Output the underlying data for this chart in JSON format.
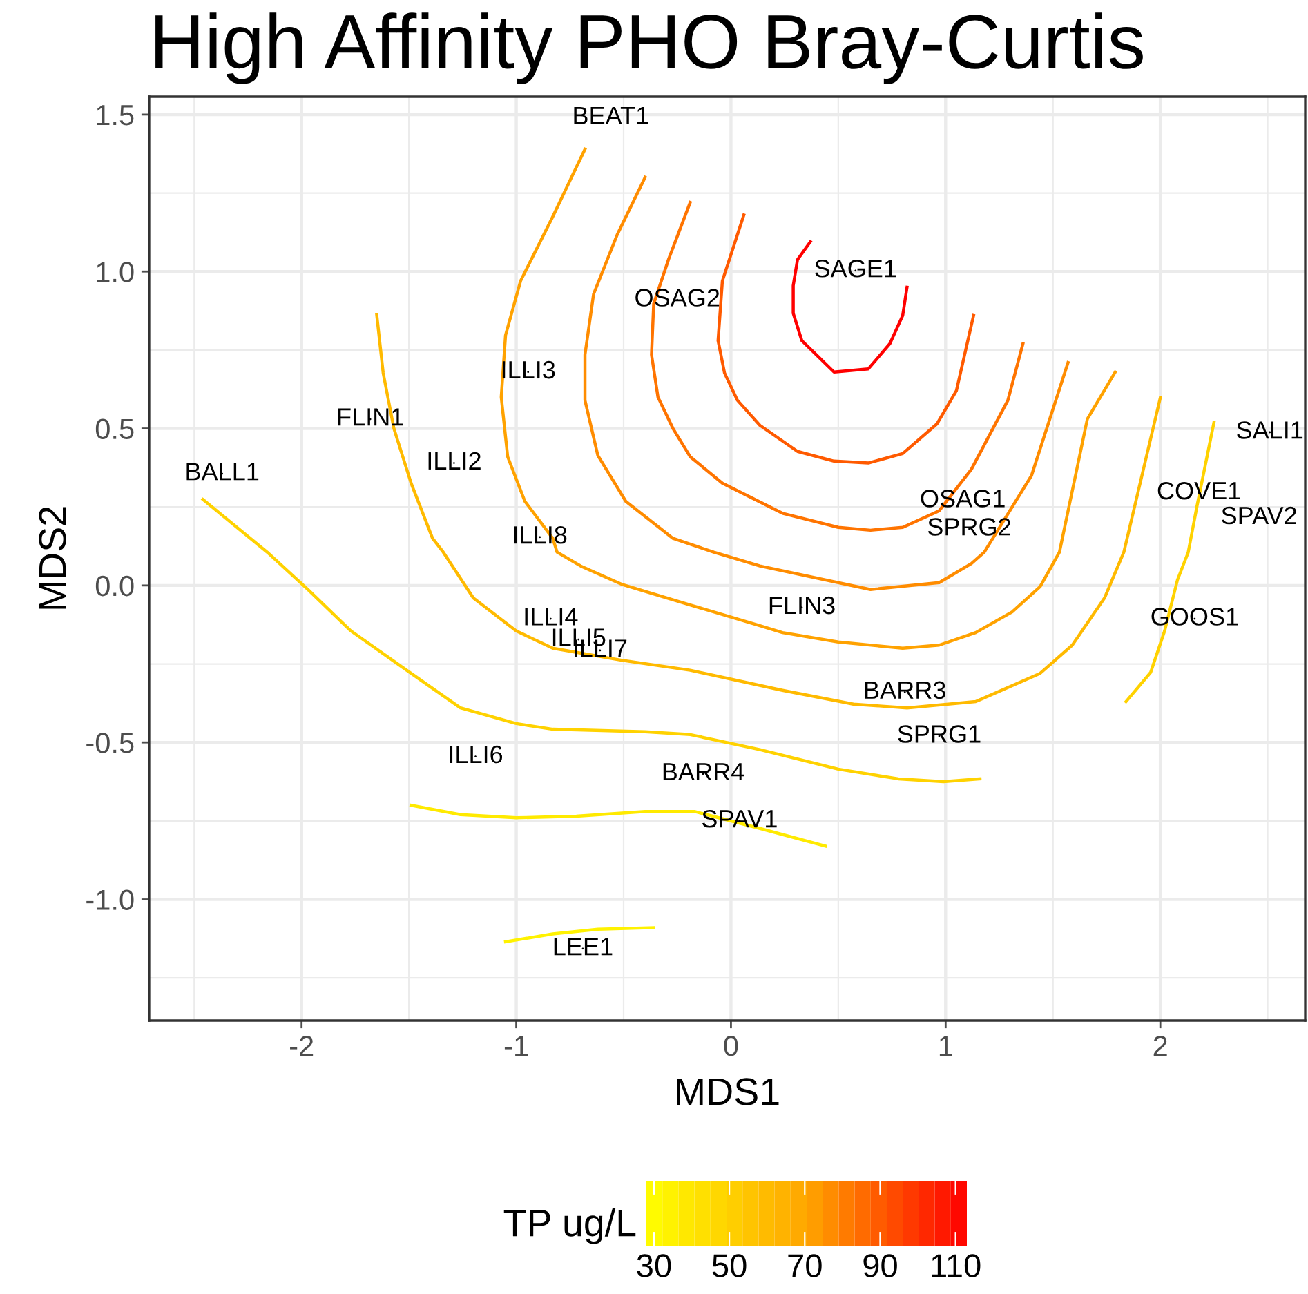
{
  "chart_data": {
    "type": "line",
    "title": "High Affinity PHO Bray-Curtis",
    "xlabel": "MDS1",
    "ylabel": "MDS2",
    "clabel": "TP ug/L",
    "clim": [
      28,
      113
    ],
    "cticks": [
      30,
      50,
      70,
      90,
      110
    ],
    "xlim": [
      -2.71,
      2.675
    ],
    "ylim": [
      -1.386,
      1.557
    ],
    "xticks": [
      -2,
      -1,
      0,
      1,
      2
    ],
    "yticks": [
      {
        "value": -1.0,
        "label": "-1.0"
      },
      {
        "value": -0.5,
        "label": "-0.5"
      },
      {
        "value": 0.0,
        "label": "0.0"
      },
      {
        "value": 0.5,
        "label": "0.5"
      },
      {
        "value": 1.0,
        "label": "1.0"
      },
      {
        "value": 1.5,
        "label": "1.5"
      }
    ],
    "grid": true,
    "line_style": "solid",
    "marker": "none",
    "series": [
      {
        "color": "#fff200",
        "x": [
          -1.05,
          -0.83,
          -0.62,
          -0.36
        ],
        "values": [
          -1.135,
          -1.11,
          -1.095,
          -1.09
        ]
      },
      {
        "color": "#ffea00",
        "x": [
          -1.49,
          -1.26,
          -1.0,
          -0.72,
          -0.4,
          -0.17,
          0.135,
          0.44
        ],
        "values": [
          -0.7,
          -0.73,
          -0.74,
          -0.735,
          -0.72,
          -0.72,
          -0.774,
          -0.83
        ]
      },
      {
        "color": "#ffd200",
        "x": [
          -2.46,
          -2.16,
          -1.97,
          -1.77,
          -1.49,
          -1.26,
          -1.0,
          -0.83,
          -0.4,
          -0.19,
          0.135,
          0.5,
          0.78,
          0.99,
          1.16
        ],
        "values": [
          0.274,
          0.106,
          -0.013,
          -0.145,
          -0.28,
          -0.39,
          -0.44,
          -0.458,
          -0.466,
          -0.475,
          -0.523,
          -0.585,
          -0.616,
          -0.625,
          -0.616
        ]
      },
      {
        "color": "#ffd200",
        "x": [
          1.84,
          1.955,
          2.02,
          2.08,
          2.13,
          2.17,
          2.25
        ],
        "values": [
          -0.37,
          -0.277,
          -0.145,
          0.018,
          0.106,
          0.25,
          0.52
        ]
      },
      {
        "color": "#ffba00",
        "x": [
          -1.65,
          -1.62,
          -1.57,
          -1.49,
          -1.39,
          -1.34,
          -1.2,
          -1.0,
          -0.83,
          -0.51,
          -0.19,
          0.24,
          0.57,
          0.82,
          1.14,
          1.44,
          1.59,
          1.74,
          1.83,
          2.0
        ],
        "values": [
          0.862,
          0.677,
          0.5,
          0.326,
          0.15,
          0.106,
          -0.04,
          -0.145,
          -0.2,
          -0.238,
          -0.27,
          -0.334,
          -0.378,
          -0.39,
          -0.37,
          -0.28,
          -0.19,
          -0.04,
          0.106,
          0.598
        ]
      },
      {
        "color": "#ffa200",
        "x": [
          -0.68,
          -0.83,
          -0.98,
          -1.05,
          -1.07,
          -1.04,
          -0.96,
          -0.83,
          -0.81,
          -0.7,
          -0.51,
          -0.19,
          0.135,
          0.24,
          0.5,
          0.8,
          0.97,
          1.14,
          1.31,
          1.44,
          1.53,
          1.66,
          1.79
        ],
        "values": [
          1.39,
          1.175,
          0.97,
          0.797,
          0.6,
          0.41,
          0.268,
          0.15,
          0.106,
          0.062,
          0.004,
          -0.062,
          -0.128,
          -0.15,
          -0.18,
          -0.2,
          -0.19,
          -0.15,
          -0.084,
          -0.004,
          0.106,
          0.53,
          0.68
        ]
      },
      {
        "color": "#ff8c00",
        "x": [
          -0.4,
          -0.53,
          -0.64,
          -0.68,
          -0.68,
          -0.62,
          -0.49,
          -0.27,
          -0.08,
          0.135,
          0.65,
          0.97,
          1.12,
          1.18,
          1.4,
          1.57
        ],
        "values": [
          1.3,
          1.117,
          0.928,
          0.735,
          0.59,
          0.414,
          0.268,
          0.15,
          0.106,
          0.062,
          -0.013,
          0.009,
          0.07,
          0.106,
          0.35,
          0.71
        ]
      },
      {
        "color": "#ff7400",
        "x": [
          -0.19,
          -0.29,
          -0.36,
          -0.37,
          -0.34,
          -0.27,
          -0.19,
          -0.04,
          0.24,
          0.5,
          0.65,
          0.8,
          0.97,
          1.12,
          1.29,
          1.36
        ],
        "values": [
          1.22,
          1.04,
          0.897,
          0.735,
          0.6,
          0.5,
          0.41,
          0.326,
          0.23,
          0.185,
          0.176,
          0.185,
          0.238,
          0.37,
          0.59,
          0.77
        ]
      },
      {
        "color": "#ff5a00",
        "x": [
          0.06,
          -0.04,
          -0.06,
          -0.03,
          0.03,
          0.135,
          0.31,
          0.48,
          0.64,
          0.8,
          0.96,
          1.05,
          1.13
        ],
        "values": [
          1.18,
          0.97,
          0.78,
          0.677,
          0.59,
          0.51,
          0.427,
          0.396,
          0.39,
          0.42,
          0.515,
          0.62,
          0.86
        ]
      },
      {
        "color": "#ff0000",
        "x": [
          0.37,
          0.31,
          0.29,
          0.29,
          0.33,
          0.48,
          0.64,
          0.74,
          0.8,
          0.82
        ],
        "values": [
          1.095,
          1.038,
          0.955,
          0.867,
          0.78,
          0.68,
          0.69,
          0.77,
          0.86,
          0.95
        ]
      },
      {
        "type": "scatter",
        "color": "#000000",
        "x": [
          -0.56,
          0.58,
          -0.25,
          -0.945,
          -1.68,
          -1.29,
          -2.37,
          -0.89,
          1.08,
          1.11,
          2.51,
          2.18,
          2.46,
          0.33,
          2.16,
          -0.84,
          -0.71,
          -0.61,
          0.81,
          0.97,
          -1.19,
          -0.13,
          0.04,
          -0.69
        ],
        "values": [
          1.49,
          1.003,
          0.91,
          0.68,
          0.53,
          0.39,
          0.356,
          0.154,
          0.27,
          0.18,
          0.488,
          0.295,
          0.216,
          -0.07,
          -0.106,
          -0.106,
          -0.172,
          -0.207,
          -0.34,
          -0.48,
          -0.545,
          -0.6,
          -0.75,
          -1.157
        ],
        "value_labels": [
          "BEAT1",
          "SAGE1",
          "OSAG2",
          "ILLI3",
          "FLIN1",
          "ILLI2",
          "BALL1",
          "ILLI8",
          "OSAG1",
          "SPRG2",
          "SALI1",
          "COVE1",
          "SPAV2",
          "FLIN3",
          "GOOS1",
          "ILLI4",
          "ILLI5",
          "ILLI7",
          "BARR3",
          "SPRG1",
          "ILLI6",
          "BARR4",
          "SPAV1",
          "LEE1"
        ]
      }
    ]
  }
}
